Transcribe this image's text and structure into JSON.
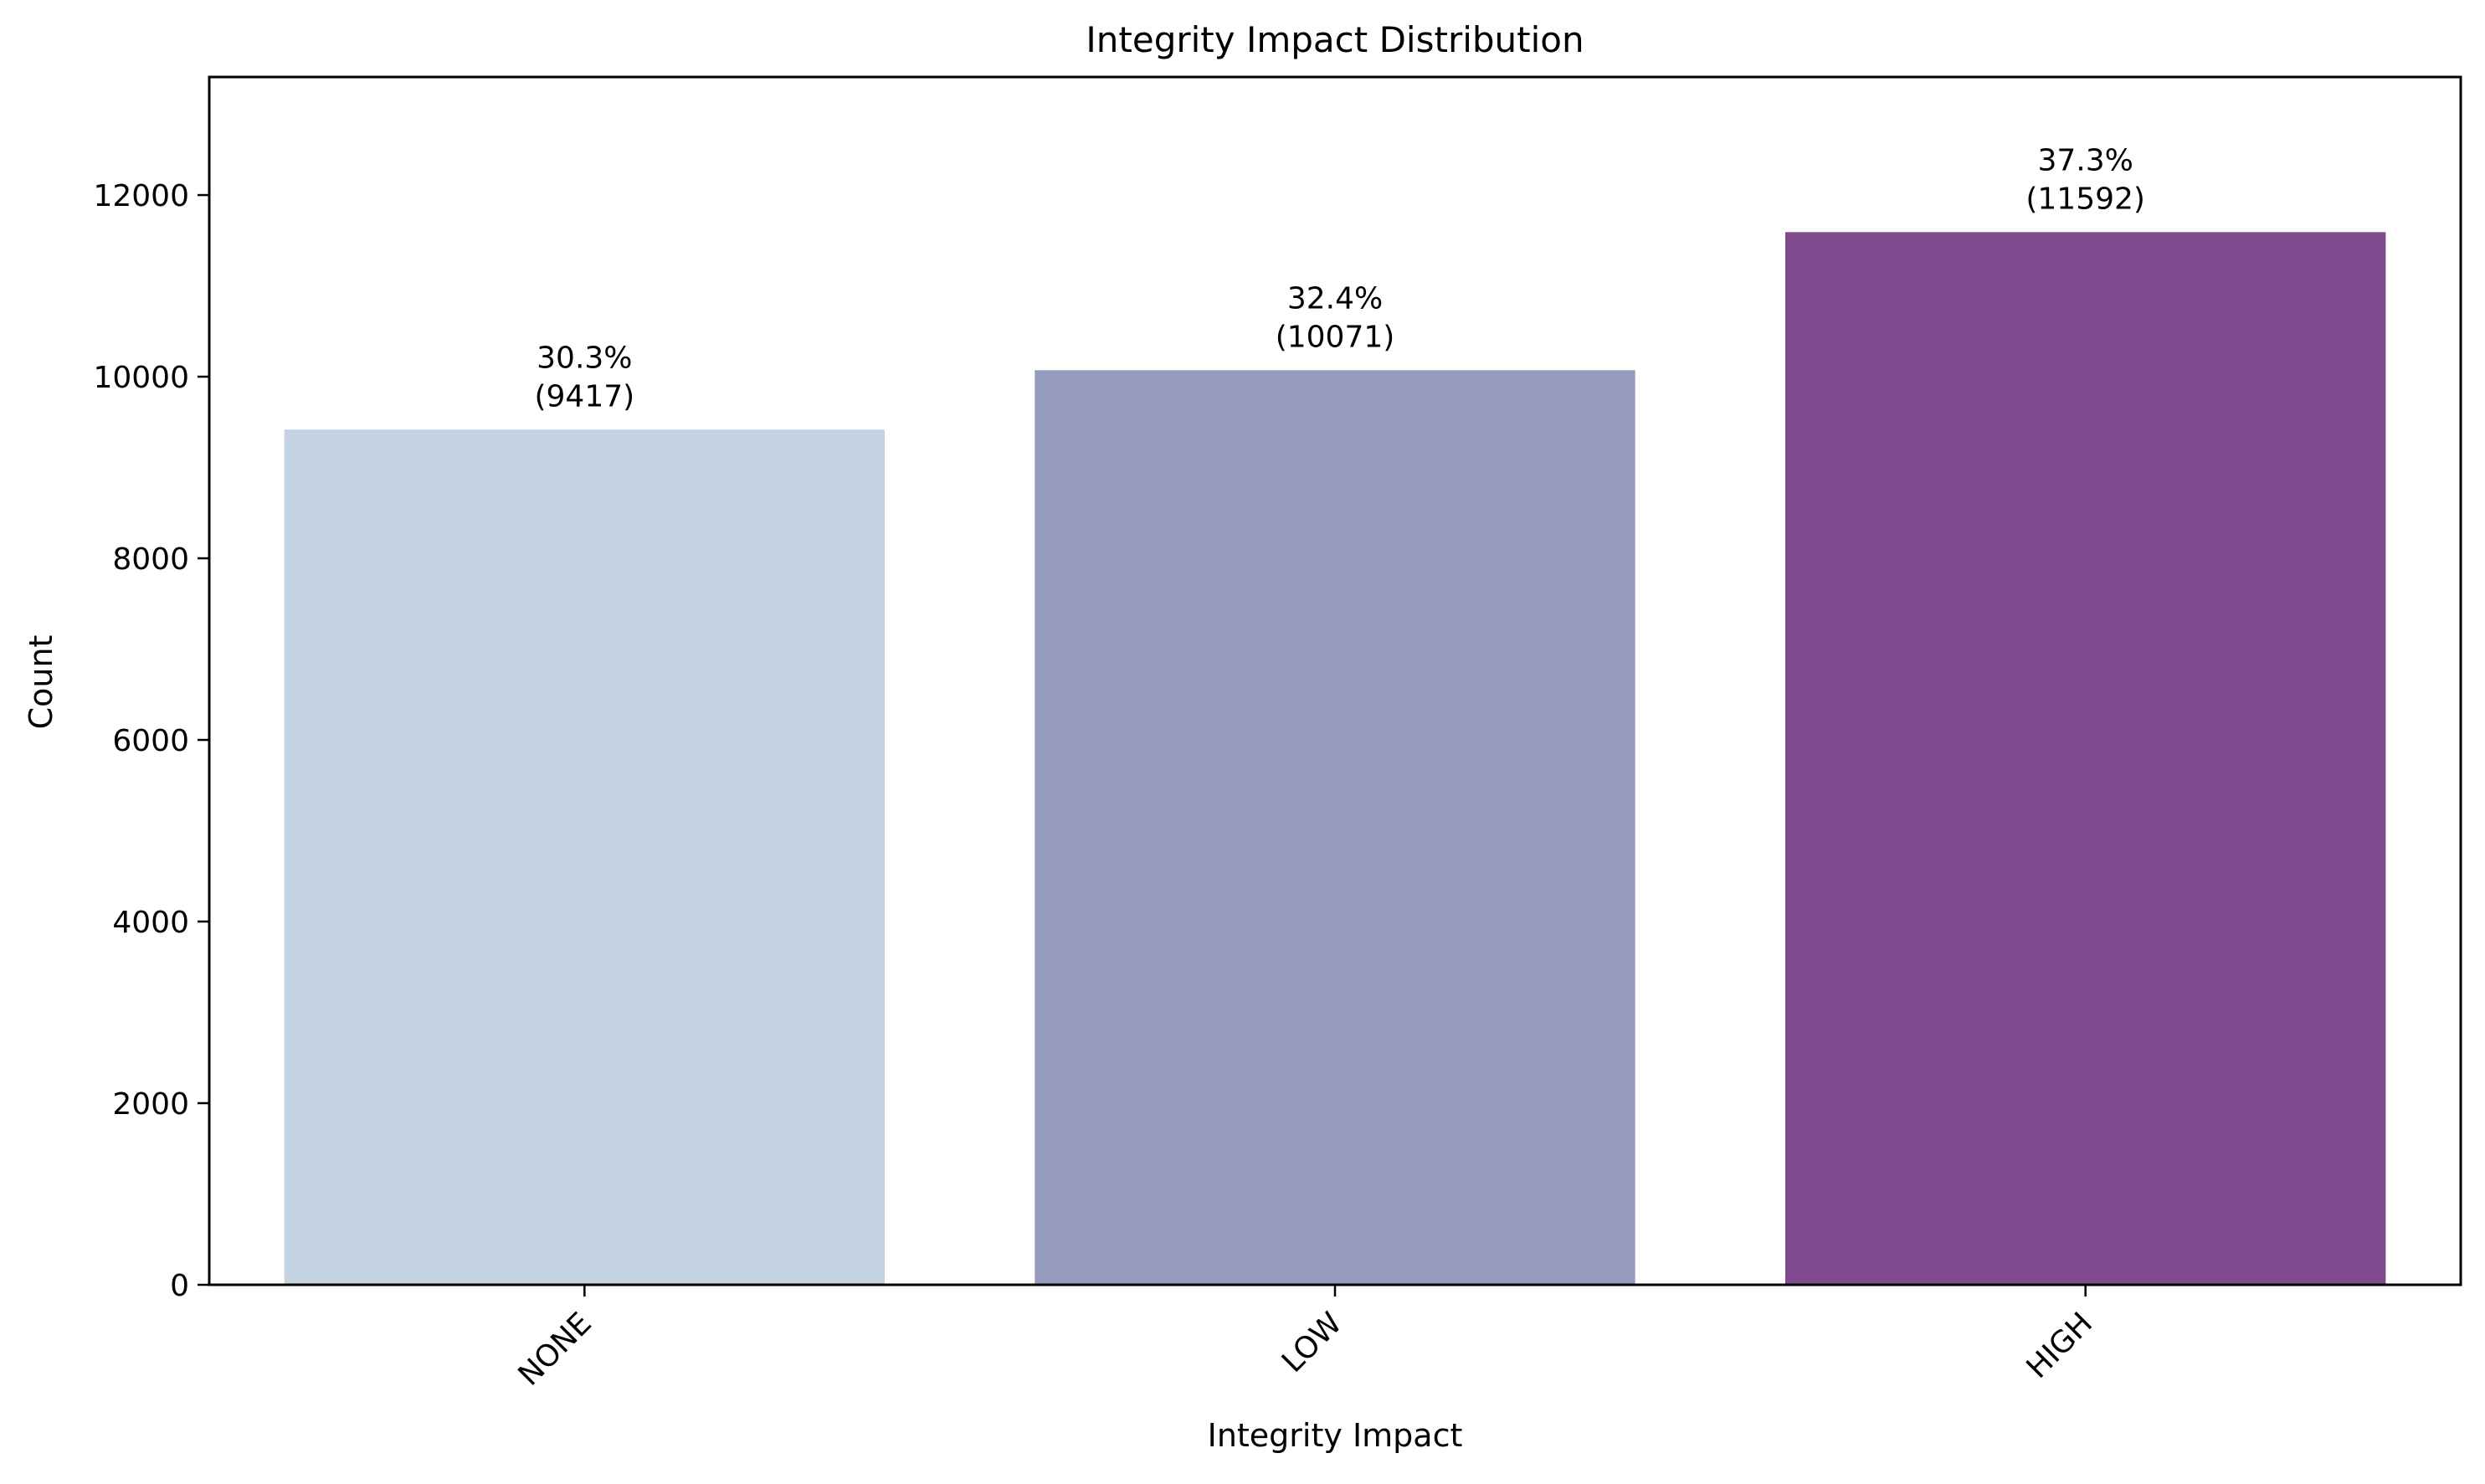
{
  "chart_data": {
    "type": "bar",
    "title": "Integrity Impact Distribution",
    "xlabel": "Integrity Impact",
    "ylabel": "Count",
    "categories": [
      "NONE",
      "LOW",
      "HIGH"
    ],
    "values": [
      9417,
      10071,
      11592
    ],
    "percent_labels": [
      "30.3%",
      "32.4%",
      "37.3%"
    ],
    "count_labels": [
      "(9417)",
      "(10071)",
      "(11592)"
    ],
    "colors": [
      "#c3d3e2",
      "#949bbd",
      "#7f4b8e"
    ],
    "ylim": [
      0,
      13300
    ],
    "yticks": [
      0,
      2000,
      4000,
      6000,
      8000,
      10000,
      12000
    ],
    "grid": false,
    "legend": "none"
  }
}
